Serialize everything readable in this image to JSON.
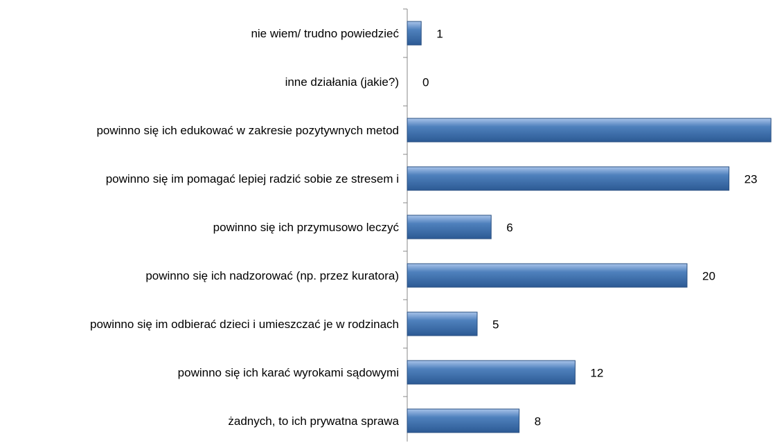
{
  "chart_data": {
    "type": "barh",
    "categories": [
      "nie wiem/ trudno powiedzieć",
      "inne działania (jakie?)",
      "powinno się ich edukować w zakresie pozytywnych metod",
      "powinno się im pomagać lepiej radzić sobie ze stresem i",
      "powinno się ich przymusowo leczyć",
      "powinno się ich nadzorować (np. przez kuratora)",
      "powinno się im odbierać dzieci i umieszczać je w rodzinach",
      "powinno się ich karać wyrokami sądowymi",
      "żadnych, to ich prywatna sprawa"
    ],
    "values": [
      1,
      0,
      26,
      23,
      6,
      20,
      5,
      12,
      8
    ],
    "color": "#4f81bd"
  }
}
